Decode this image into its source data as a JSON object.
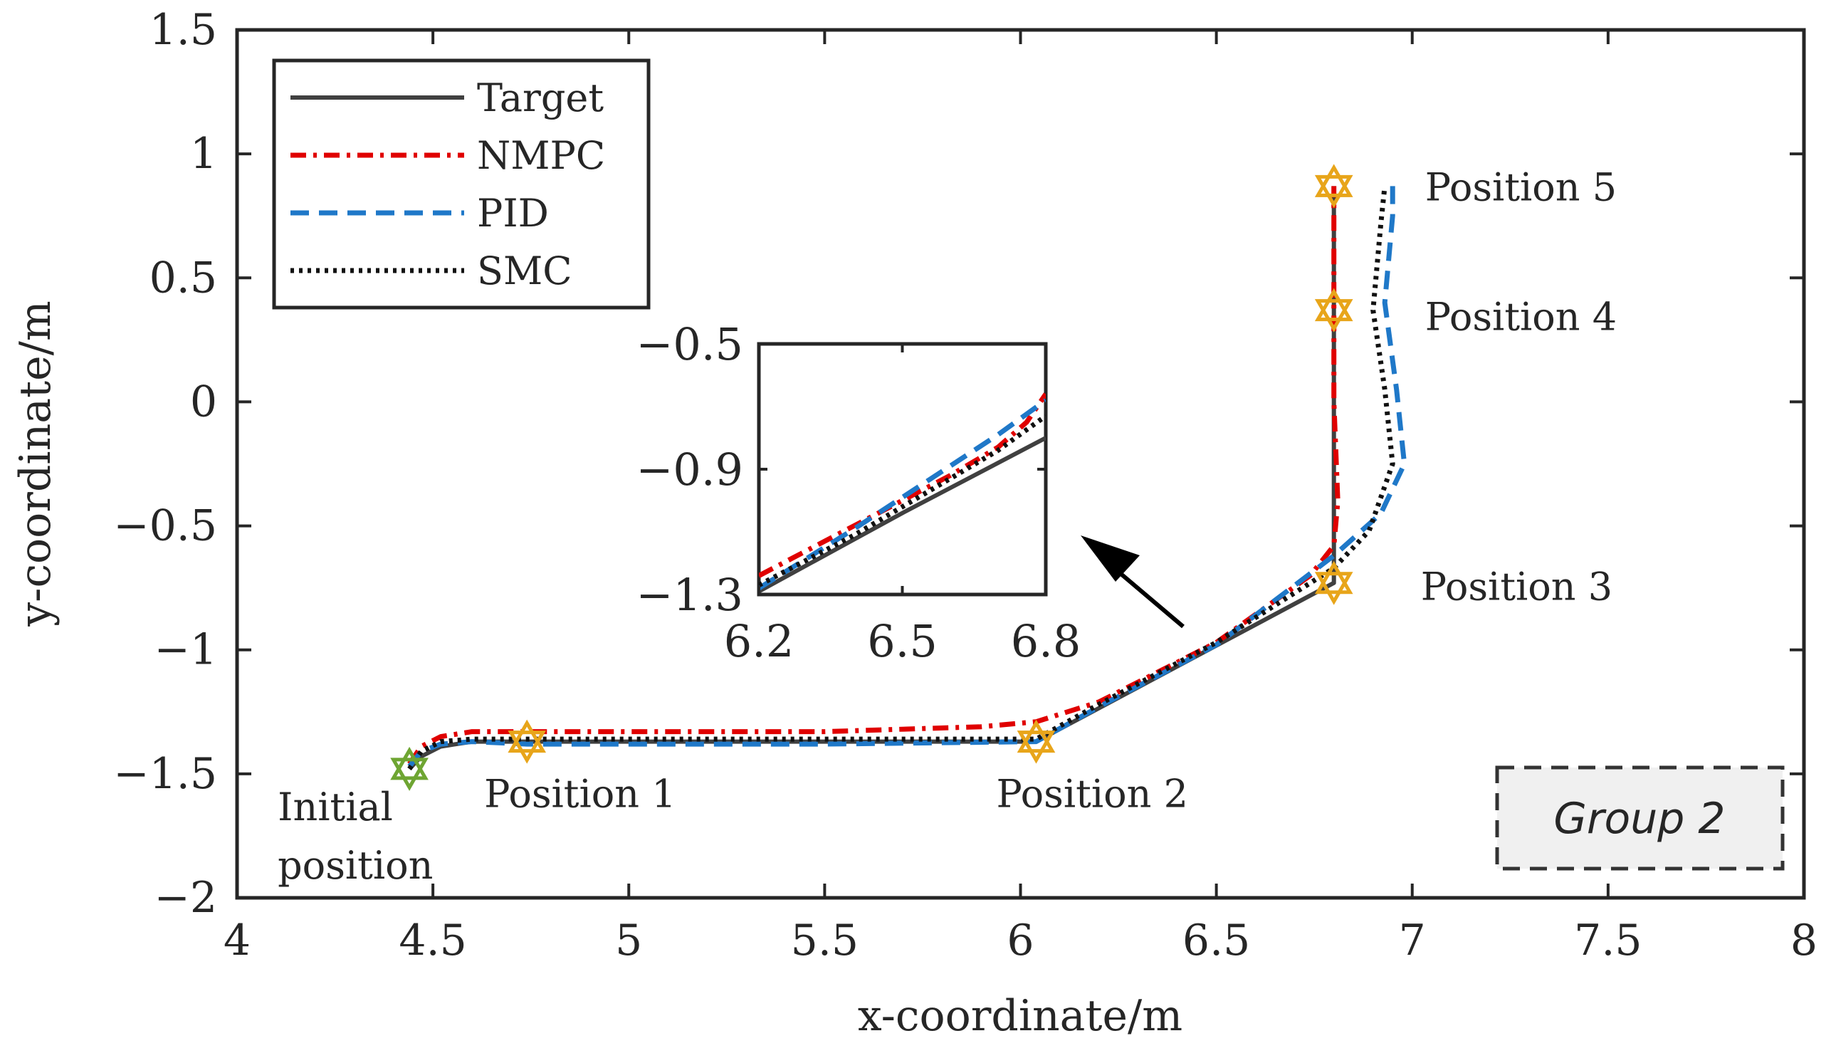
{
  "chart_data": {
    "type": "line",
    "xlabel": "x-coordinate/m",
    "ylabel": "y-coordinate/m",
    "xlim": [
      4,
      8
    ],
    "ylim": [
      -2,
      1.5
    ],
    "xticks": [
      4,
      4.5,
      5,
      5.5,
      6,
      6.5,
      7,
      7.5,
      8
    ],
    "yticks": [
      1.5,
      1,
      0.5,
      0,
      -0.5,
      -1,
      -1.5,
      -2
    ],
    "xtick_labels": [
      "4",
      "4.5",
      "5",
      "5.5",
      "6",
      "6.5",
      "7",
      "7.5",
      "8"
    ],
    "ytick_labels": [
      "1.5",
      "1",
      "0.5",
      "0",
      "−0.5",
      "−1",
      "−1.5",
      "−2"
    ],
    "legend_position": "top-left",
    "series": [
      {
        "name": "Target",
        "color": "#404040",
        "style": "solid",
        "x": [
          4.44,
          4.47,
          4.52,
          4.6,
          4.74,
          5.5,
          6.04,
          6.8,
          6.8,
          6.8,
          6.8
        ],
        "y": [
          -1.48,
          -1.43,
          -1.39,
          -1.37,
          -1.37,
          -1.37,
          -1.37,
          -0.73,
          -0.5,
          0.37,
          0.87
        ]
      },
      {
        "name": "NMPC",
        "color": "#e00000",
        "style": "dashdot",
        "x": [
          4.44,
          4.47,
          4.52,
          4.6,
          4.74,
          5.5,
          5.9,
          6.04,
          6.2,
          6.5,
          6.74,
          6.8,
          6.81,
          6.8,
          6.8,
          6.8
        ],
        "y": [
          -1.46,
          -1.39,
          -1.35,
          -1.33,
          -1.33,
          -1.33,
          -1.31,
          -1.29,
          -1.21,
          -0.97,
          -0.7,
          -0.58,
          -0.4,
          0.0,
          0.37,
          0.87
        ]
      },
      {
        "name": "PID",
        "color": "#1f78c8",
        "style": "dashed",
        "x": [
          4.44,
          4.47,
          4.52,
          4.6,
          4.74,
          5.5,
          6.04,
          6.2,
          6.5,
          6.8,
          6.92,
          6.98,
          6.96,
          6.93,
          6.95,
          6.95
        ],
        "y": [
          -1.47,
          -1.41,
          -1.38,
          -1.37,
          -1.38,
          -1.38,
          -1.37,
          -1.23,
          -0.98,
          -0.62,
          -0.45,
          -0.25,
          0.05,
          0.4,
          0.75,
          0.87
        ]
      },
      {
        "name": "SMC",
        "color": "#111111",
        "style": "dotted",
        "x": [
          4.44,
          4.47,
          4.52,
          4.6,
          4.74,
          5.5,
          6.04,
          6.2,
          6.5,
          6.8,
          6.89,
          6.95,
          6.93,
          6.9,
          6.92,
          6.93
        ],
        "y": [
          -1.48,
          -1.41,
          -1.37,
          -1.36,
          -1.36,
          -1.36,
          -1.36,
          -1.22,
          -0.97,
          -0.67,
          -0.52,
          -0.25,
          0.05,
          0.37,
          0.72,
          0.87
        ]
      }
    ],
    "markers": [
      {
        "label": "Initial\nposition",
        "lines": [
          "Initial",
          "position"
        ],
        "x": 4.44,
        "y": -1.48,
        "color": "#6ea532"
      },
      {
        "label": "Position 1",
        "lines": [
          "Position 1"
        ],
        "x": 4.74,
        "y": -1.37,
        "color": "#e8a51a"
      },
      {
        "label": "Position 2",
        "lines": [
          "Position 2"
        ],
        "x": 6.04,
        "y": -1.37,
        "color": "#e8a51a"
      },
      {
        "label": "Position 3",
        "lines": [
          "Position 3"
        ],
        "x": 6.8,
        "y": -0.73,
        "color": "#e8a51a"
      },
      {
        "label": "Position 4",
        "lines": [
          "Position 4"
        ],
        "x": 6.8,
        "y": 0.37,
        "color": "#e8a51a"
      },
      {
        "label": "Position 5",
        "lines": [
          "Position 5"
        ],
        "x": 6.8,
        "y": 0.87,
        "color": "#e8a51a"
      }
    ],
    "annotation_box": "Group 2",
    "inset": {
      "xlim": [
        6.2,
        6.8
      ],
      "ylim": [
        -1.3,
        -0.5
      ],
      "xticks": [
        6.2,
        6.5,
        6.8
      ],
      "yticks": [
        -0.5,
        -0.9,
        -1.3
      ],
      "xtick_labels": [
        "6.2",
        "6.5",
        "6.8"
      ],
      "ytick_labels": [
        "−0.5",
        "−0.9",
        "−1.3"
      ],
      "series": [
        {
          "name": "Target",
          "x": [
            6.2,
            6.5,
            6.8
          ],
          "y": [
            -1.29,
            -1.04,
            -0.8
          ]
        },
        {
          "name": "NMPC",
          "x": [
            6.2,
            6.4,
            6.5,
            6.6,
            6.7,
            6.76,
            6.8
          ],
          "y": [
            -1.24,
            -1.08,
            -1.0,
            -0.92,
            -0.83,
            -0.75,
            -0.66
          ]
        },
        {
          "name": "PID",
          "x": [
            6.2,
            6.4,
            6.5,
            6.6,
            6.7,
            6.8
          ],
          "y": [
            -1.28,
            -1.09,
            -0.99,
            -0.89,
            -0.79,
            -0.68
          ]
        },
        {
          "name": "SMC",
          "x": [
            6.2,
            6.4,
            6.5,
            6.6,
            6.7,
            6.8
          ],
          "y": [
            -1.27,
            -1.11,
            -1.02,
            -0.93,
            -0.84,
            -0.73
          ]
        }
      ]
    }
  }
}
